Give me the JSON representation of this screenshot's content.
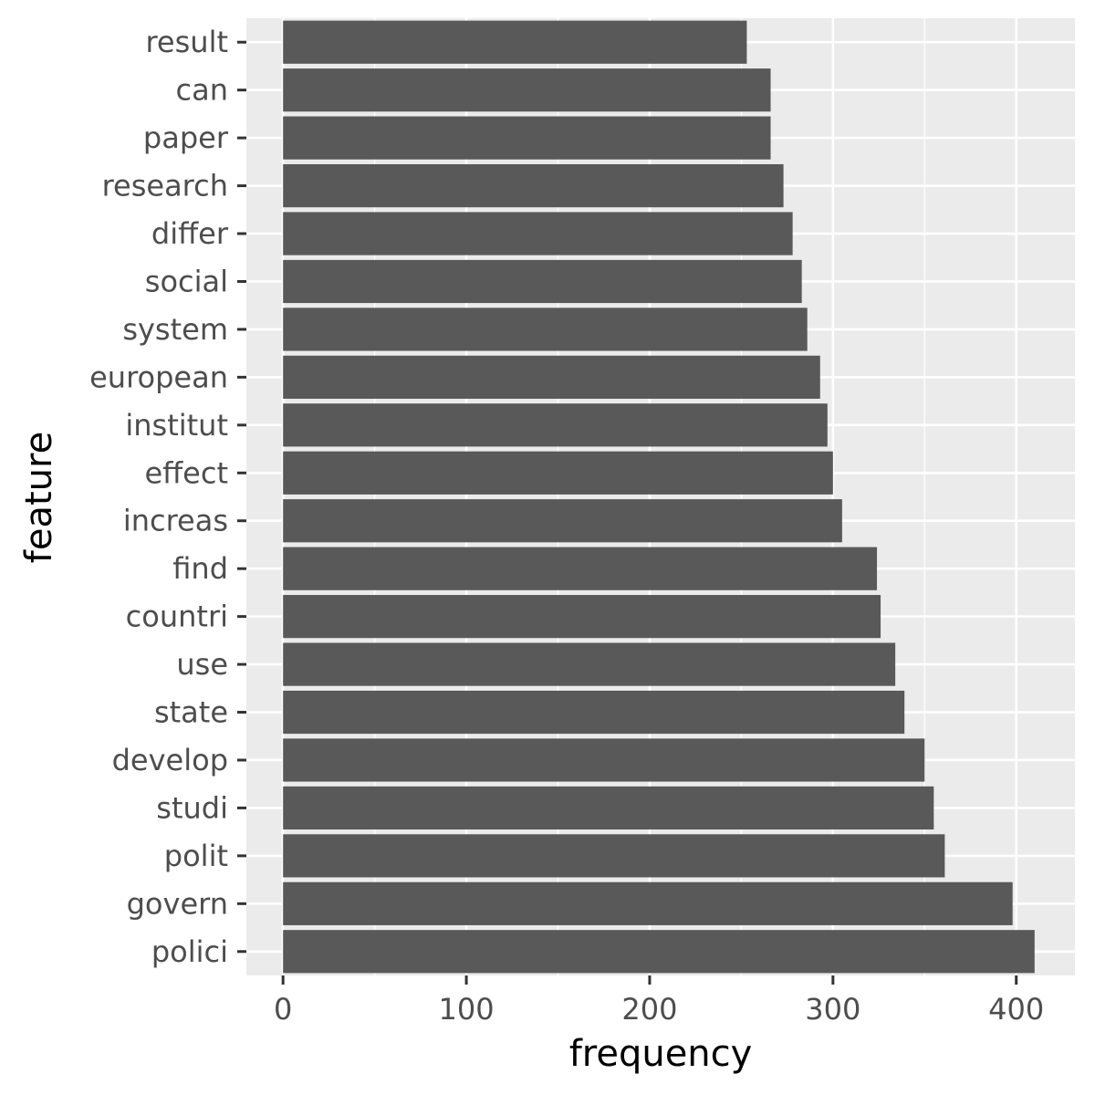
{
  "chart_data": {
    "type": "bar",
    "orientation": "horizontal",
    "title": "",
    "xlabel": "frequency",
    "ylabel": "feature",
    "xlim": [
      -20,
      432
    ],
    "x_ticks": [
      0,
      100,
      200,
      300,
      400
    ],
    "grid": true,
    "legend": "none",
    "categories": [
      "polici",
      "govern",
      "polit",
      "studi",
      "develop",
      "state",
      "use",
      "countri",
      "find",
      "increas",
      "effect",
      "institut",
      "european",
      "system",
      "social",
      "differ",
      "research",
      "paper",
      "can",
      "result"
    ],
    "values": [
      410,
      398,
      361,
      355,
      350,
      339,
      334,
      326,
      324,
      305,
      300,
      297,
      293,
      286,
      283,
      278,
      273,
      266,
      266,
      253
    ]
  },
  "colors": {
    "bar": "#595959",
    "panel": "#ebebeb",
    "grid_major": "#ffffff",
    "tick_text": "#4d4d4d",
    "axis_title": "#000000"
  }
}
